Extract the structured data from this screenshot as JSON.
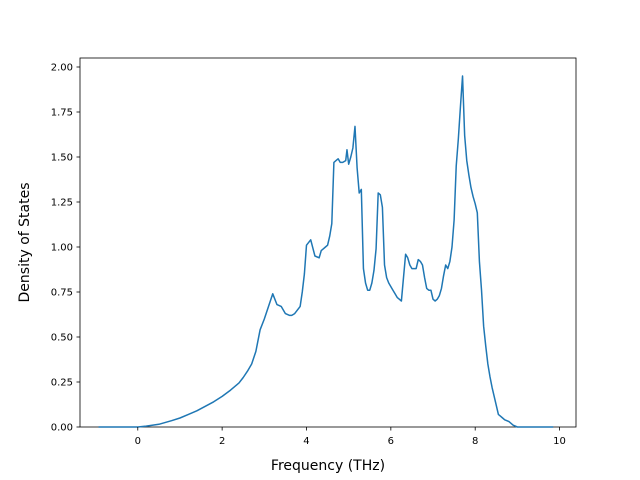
{
  "chart_data": {
    "type": "line",
    "title": "",
    "xlabel": "Frequency (THz)",
    "ylabel": "Density of States",
    "xlim": [
      -1.37,
      10.39
    ],
    "ylim": [
      0.0,
      2.05
    ],
    "grid": false,
    "legend": "none",
    "xticks": [
      0,
      2,
      4,
      6,
      8,
      10
    ],
    "xtick_labels": [
      "0",
      "2",
      "4",
      "6",
      "8",
      "10"
    ],
    "yticks": [
      0.0,
      0.25,
      0.5,
      0.75,
      1.0,
      1.25,
      1.5,
      1.75,
      2.0
    ],
    "ytick_labels": [
      "0.00",
      "0.25",
      "0.50",
      "0.75",
      "1.00",
      "1.25",
      "1.50",
      "1.75",
      "2.00"
    ],
    "colors": {
      "line": "#1f77b4",
      "axes": "#000000",
      "background": "#ffffff"
    },
    "series": [
      {
        "x": [
          -0.93,
          -0.5,
          0.0,
          0.2,
          0.5,
          0.8,
          1.0,
          1.2,
          1.4,
          1.6,
          1.8,
          2.0,
          2.2,
          2.4,
          2.5,
          2.6,
          2.7,
          2.8,
          2.9,
          3.0,
          3.1,
          3.2,
          3.3,
          3.4,
          3.5,
          3.6,
          3.65,
          3.72,
          3.85,
          3.9,
          3.95,
          4.0,
          4.1,
          4.2,
          4.3,
          4.35,
          4.4,
          4.45,
          4.5,
          4.55,
          4.6,
          4.65,
          4.7,
          4.75,
          4.8,
          4.86,
          4.93,
          4.96,
          5.0,
          5.05,
          5.1,
          5.15,
          5.2,
          5.25,
          5.3,
          5.35,
          5.4,
          5.45,
          5.5,
          5.55,
          5.6,
          5.65,
          5.7,
          5.75,
          5.8,
          5.85,
          5.9,
          5.95,
          6.0,
          6.05,
          6.1,
          6.15,
          6.2,
          6.25,
          6.3,
          6.35,
          6.4,
          6.45,
          6.5,
          6.55,
          6.6,
          6.65,
          6.7,
          6.75,
          6.8,
          6.85,
          6.9,
          6.95,
          7.0,
          7.05,
          7.1,
          7.15,
          7.2,
          7.25,
          7.3,
          7.35,
          7.4,
          7.45,
          7.5,
          7.55,
          7.6,
          7.65,
          7.7,
          7.75,
          7.8,
          7.85,
          7.9,
          7.95,
          8.0,
          8.05,
          8.1,
          8.15,
          8.2,
          8.25,
          8.3,
          8.35,
          8.4,
          8.45,
          8.5,
          8.55,
          8.6,
          8.65,
          8.7,
          8.8,
          8.9,
          9.0,
          9.2,
          9.5,
          9.85
        ],
        "y": [
          0.0,
          0.0,
          0.0,
          0.005,
          0.015,
          0.035,
          0.05,
          0.07,
          0.09,
          0.115,
          0.14,
          0.17,
          0.205,
          0.245,
          0.275,
          0.31,
          0.35,
          0.42,
          0.54,
          0.6,
          0.67,
          0.74,
          0.68,
          0.67,
          0.63,
          0.62,
          0.62,
          0.63,
          0.67,
          0.75,
          0.85,
          1.01,
          1.04,
          0.95,
          0.94,
          0.98,
          0.99,
          1.0,
          1.01,
          1.06,
          1.13,
          1.47,
          1.48,
          1.49,
          1.47,
          1.47,
          1.48,
          1.54,
          1.46,
          1.5,
          1.55,
          1.67,
          1.44,
          1.3,
          1.32,
          0.88,
          0.8,
          0.76,
          0.76,
          0.8,
          0.87,
          0.99,
          1.3,
          1.29,
          1.22,
          0.9,
          0.83,
          0.8,
          0.78,
          0.76,
          0.74,
          0.72,
          0.71,
          0.7,
          0.83,
          0.96,
          0.94,
          0.9,
          0.88,
          0.88,
          0.88,
          0.93,
          0.92,
          0.9,
          0.83,
          0.77,
          0.76,
          0.76,
          0.71,
          0.7,
          0.71,
          0.73,
          0.77,
          0.84,
          0.9,
          0.88,
          0.92,
          1.0,
          1.15,
          1.45,
          1.6,
          1.78,
          1.95,
          1.62,
          1.48,
          1.4,
          1.33,
          1.28,
          1.24,
          1.19,
          0.92,
          0.76,
          0.56,
          0.45,
          0.35,
          0.28,
          0.22,
          0.17,
          0.12,
          0.07,
          0.06,
          0.05,
          0.04,
          0.03,
          0.01,
          0.0,
          0.0,
          0.0,
          0.0
        ]
      }
    ]
  }
}
